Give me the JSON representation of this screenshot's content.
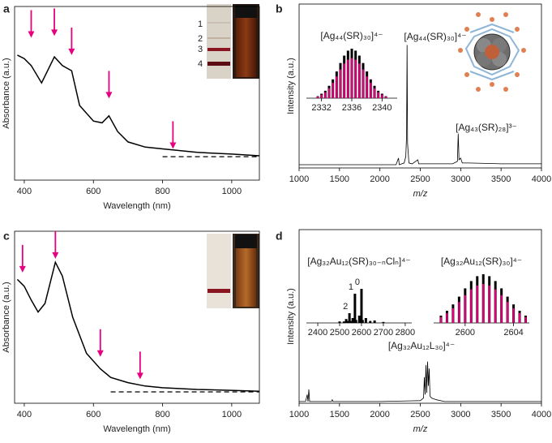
{
  "chart_data": [
    {
      "type": "line",
      "panel": "a",
      "x_label": "Wavelength (nm)",
      "y_label": "Absorbance (a.u.)",
      "xlim": [
        372,
        1080
      ],
      "ylim": [
        0,
        1
      ],
      "xticks": [
        400,
        600,
        800,
        1000
      ],
      "color": "#000000",
      "x": [
        380,
        400,
        420,
        450,
        487,
        510,
        537,
        560,
        600,
        625,
        645,
        670,
        700,
        750,
        800,
        850,
        900,
        1000,
        1080
      ],
      "values": [
        0.72,
        0.7,
        0.66,
        0.56,
        0.71,
        0.66,
        0.63,
        0.43,
        0.34,
        0.33,
        0.37,
        0.28,
        0.22,
        0.19,
        0.18,
        0.17,
        0.16,
        0.15,
        0.14
      ],
      "baseline": {
        "x": [
          800,
          1080
        ],
        "values": [
          0.135,
          0.135
        ]
      },
      "arrow_color": "#e6007e",
      "arrows": [
        {
          "x": 420,
          "y": 0.82
        },
        {
          "x": 487,
          "y": 0.83
        },
        {
          "x": 537,
          "y": 0.72
        },
        {
          "x": 645,
          "y": 0.47
        },
        {
          "x": 830,
          "y": 0.18
        }
      ],
      "photo_labels": [
        "1",
        "2",
        "3",
        "4"
      ]
    },
    {
      "type": "line",
      "panel": "b",
      "x_label": "m/z",
      "y_label": "Intensity (a.u.)",
      "xlim": [
        1000,
        4000
      ],
      "ylim": [
        0,
        1
      ],
      "xticks": [
        1000,
        1500,
        2000,
        2500,
        3000,
        3500,
        4000
      ],
      "color": "#000000",
      "x": [
        1000,
        1500,
        2000,
        2200,
        2230,
        2240,
        2300,
        2320,
        2330,
        2336,
        2342,
        2360,
        2400,
        2470,
        2480,
        2600,
        2900,
        2960,
        2970,
        2980,
        3000,
        3020,
        3100,
        3500,
        4000
      ],
      "values": [
        0.02,
        0.02,
        0.02,
        0.02,
        0.06,
        0.02,
        0.03,
        0.07,
        0.2,
        0.75,
        0.15,
        0.03,
        0.025,
        0.05,
        0.025,
        0.025,
        0.025,
        0.04,
        0.21,
        0.05,
        0.06,
        0.03,
        0.03,
        0.025,
        0.025
      ],
      "annotations": [
        "[Ag₄₄(SR)₃₀]⁴⁻",
        "[Ag₄₃(SR)₂₈]³⁻"
      ]
    },
    {
      "type": "stem",
      "title": "[Ag₄₄(SR)₃₀]⁴⁻",
      "xlim": [
        2330,
        2342
      ],
      "ylim": [
        0,
        1
      ],
      "xticks": [
        2332,
        2336,
        2340
      ],
      "x": [
        2331.5,
        2332,
        2332.5,
        2333,
        2333.5,
        2334,
        2334.5,
        2335,
        2335.5,
        2336,
        2336.5,
        2337,
        2337.5,
        2338,
        2338.5,
        2339,
        2339.5,
        2340,
        2340.5
      ],
      "series": [
        {
          "color": "#000000",
          "values": [
            0.04,
            0.09,
            0.15,
            0.25,
            0.38,
            0.54,
            0.71,
            0.86,
            0.96,
            1,
            0.96,
            0.86,
            0.71,
            0.54,
            0.38,
            0.25,
            0.15,
            0.09,
            0.04
          ]
        },
        {
          "color": "#e6007e",
          "values": [
            0.03,
            0.07,
            0.12,
            0.2,
            0.31,
            0.44,
            0.58,
            0.7,
            0.78,
            0.81,
            0.78,
            0.7,
            0.58,
            0.44,
            0.31,
            0.2,
            0.12,
            0.07,
            0.03
          ]
        }
      ]
    },
    {
      "type": "line",
      "panel": "c",
      "x_label": "Wavelength (nm)",
      "y_label": "Absorbance (a.u.)",
      "xlim": [
        372,
        1080
      ],
      "ylim": [
        0,
        1
      ],
      "xticks": [
        400,
        600,
        800,
        1000
      ],
      "color": "#000000",
      "x": [
        380,
        400,
        420,
        440,
        460,
        490,
        510,
        540,
        580,
        620,
        650,
        700,
        750,
        800,
        900,
        1000,
        1080
      ],
      "values": [
        0.72,
        0.68,
        0.6,
        0.53,
        0.58,
        0.82,
        0.74,
        0.5,
        0.29,
        0.2,
        0.15,
        0.12,
        0.1,
        0.09,
        0.08,
        0.075,
        0.07
      ],
      "baseline": {
        "x": [
          650,
          1080
        ],
        "values": [
          0.066,
          0.066
        ]
      },
      "arrow_color": "#e6007e",
      "arrows": [
        {
          "x": 395,
          "y": 0.76
        },
        {
          "x": 490,
          "y": 0.84
        },
        {
          "x": 620,
          "y": 0.27
        },
        {
          "x": 735,
          "y": 0.14
        }
      ]
    },
    {
      "type": "line",
      "panel": "d",
      "x_label": "m/z",
      "y_label": "Intensity (a.u.)",
      "xlim": [
        1000,
        4000
      ],
      "ylim": [
        0,
        1
      ],
      "xticks": [
        1000,
        1500,
        2000,
        2500,
        3000,
        3500,
        4000
      ],
      "color": "#000000",
      "x": [
        1000,
        1080,
        1100,
        1110,
        1120,
        1130,
        1200,
        1400,
        1410,
        1420,
        2000,
        2500,
        2540,
        2550,
        2560,
        2570,
        2580,
        2590,
        2600,
        2610,
        2620,
        2640,
        2700,
        2800,
        3000,
        3500,
        4000
      ],
      "values": [
        0.01,
        0.01,
        0.05,
        0.01,
        0.08,
        0.01,
        0.01,
        0.01,
        0.02,
        0.01,
        0.01,
        0.015,
        0.03,
        0.15,
        0.05,
        0.22,
        0.06,
        0.24,
        0.1,
        0.2,
        0.04,
        0.03,
        0.02,
        0.01,
        0.01,
        0.01,
        0.01
      ],
      "annotations": [
        "[Ag₃₂Au₁₂L₃₀]⁴⁻"
      ]
    },
    {
      "type": "stem",
      "title": "[Ag₃₂Au₁₂(SR)₃₀₋ₙClₙ]⁴⁻",
      "xlim": [
        2348,
        2830
      ],
      "ylim": [
        0,
        1
      ],
      "xticks": [
        2400,
        2500,
        2600,
        2700,
        2800
      ],
      "x": [
        2500,
        2520,
        2530,
        2540,
        2545,
        2550,
        2560,
        2565,
        2570,
        2575,
        2590,
        2595,
        2600,
        2605,
        2620,
        2640,
        2660,
        2700
      ],
      "series": [
        {
          "color": "#000000",
          "values": [
            0.03,
            0.03,
            0.08,
            0.04,
            0.2,
            0.04,
            0.1,
            0.05,
            0.6,
            0.06,
            0.15,
            0.08,
            0.7,
            0.06,
            0.1,
            0.04,
            0.05,
            0.02
          ]
        }
      ],
      "peak_label_color": "#1f3fbf",
      "peak_labels": [
        {
          "x": 2545,
          "text": "2"
        },
        {
          "x": 2570,
          "text": "1"
        },
        {
          "x": 2600,
          "text": "0"
        }
      ]
    },
    {
      "type": "stem",
      "title": "[Ag₃₂Au₁₂(SR)₃₀]⁴⁻",
      "xlim": [
        2597.4,
        2605.3
      ],
      "ylim": [
        0,
        1
      ],
      "xticks": [
        2600,
        2604
      ],
      "x": [
        2598,
        2598.5,
        2599,
        2599.5,
        2600,
        2600.5,
        2601,
        2601.5,
        2602,
        2602.5,
        2603,
        2603.5,
        2604,
        2604.5,
        2605
      ],
      "series": [
        {
          "color": "#000000",
          "values": [
            0.15,
            0.25,
            0.38,
            0.54,
            0.71,
            0.86,
            0.96,
            1,
            0.96,
            0.86,
            0.71,
            0.54,
            0.38,
            0.25,
            0.15
          ]
        },
        {
          "color": "#e6007e",
          "values": [
            0.12,
            0.2,
            0.3,
            0.43,
            0.57,
            0.69,
            0.77,
            0.8,
            0.77,
            0.69,
            0.57,
            0.43,
            0.3,
            0.2,
            0.12
          ]
        }
      ]
    }
  ]
}
